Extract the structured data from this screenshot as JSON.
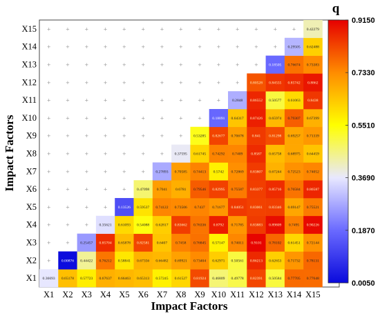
{
  "chart_data": {
    "type": "heatmap",
    "xlabel": "Impact Factors",
    "ylabel": "Impact Factors",
    "x_categories": [
      "X1",
      "X2",
      "X3",
      "X4",
      "X5",
      "X6",
      "X7",
      "X8",
      "X9",
      "X10",
      "X11",
      "X12",
      "X13",
      "X14",
      "X15"
    ],
    "y_categories": [
      "X1",
      "X2",
      "X3",
      "X4",
      "X5",
      "X6",
      "X7",
      "X8",
      "X9",
      "X10",
      "X11",
      "X12",
      "X13",
      "X14",
      "X15"
    ],
    "values": [
      [
        "0.36693",
        "0.65178",
        "0.57723",
        "0.67637",
        "0.66463",
        "0.65313",
        "0.57245",
        "0.61527",
        "0.81924",
        "0.46809",
        "0.49778",
        "0.82391",
        "0.50584",
        "0.77705",
        "0.77648"
      ],
      [
        null,
        "0.00876",
        "0.44422",
        "0.76212",
        "0.58841",
        "0.67356",
        "0.66482",
        "0.69921",
        "0.73404",
        "0.62971",
        "0.50561",
        "0.86213",
        "0.62653",
        "0.71732",
        "0.78131"
      ],
      [
        null,
        null,
        "0.25457",
        "0.85704",
        "0.65878",
        "0.82581",
        "0.6407",
        "0.7458",
        "0.76845",
        "0.57147",
        "0.74011",
        "0.9101",
        "0.78102",
        "0.61451",
        "0.72144"
      ],
      [
        null,
        null,
        null,
        "0.35621",
        "0.61093",
        "0.54088",
        "0.62817",
        "0.83662",
        "0.76336",
        "0.8792",
        "0.71785",
        "0.83883",
        "0.89809",
        "0.7495",
        "0.90226"
      ],
      [
        null,
        null,
        null,
        null,
        "0.13526",
        "0.59537",
        "0.74122",
        "0.73506",
        "0.7437",
        "0.71677",
        "0.84051",
        "0.83061",
        "0.83346",
        "0.69147",
        "0.75521"
      ],
      [
        null,
        null,
        null,
        null,
        null,
        "0.47098",
        "0.7041",
        "0.6781",
        "0.79546",
        "0.82995",
        "0.75587",
        "0.83377",
        "0.85716",
        "0.76584",
        "0.86587"
      ],
      [
        null,
        null,
        null,
        null,
        null,
        null,
        "0.27893",
        "0.70585",
        "0.74413",
        "0.5742",
        "0.72869",
        "0.83807",
        "0.67244",
        "0.72523",
        "0.74052"
      ],
      [
        null,
        null,
        null,
        null,
        null,
        null,
        null,
        "0.37595",
        "0.61745",
        "0.74292",
        "0.7409",
        "0.8587",
        "0.65758",
        "0.68975",
        "0.64459"
      ],
      [
        null,
        null,
        null,
        null,
        null,
        null,
        null,
        null,
        "0.53285",
        "0.82677",
        "0.70678",
        "0.841",
        "0.81298",
        "0.69257",
        "0.71339"
      ],
      [
        null,
        null,
        null,
        null,
        null,
        null,
        null,
        null,
        null,
        "0.18091",
        "0.64317",
        "0.87426",
        "0.65974",
        "0.79307",
        "0.67399"
      ],
      [
        null,
        null,
        null,
        null,
        null,
        null,
        null,
        null,
        null,
        null,
        "0.2848",
        "0.86552",
        "0.50577",
        "0.61063",
        "0.8438"
      ],
      [
        null,
        null,
        null,
        null,
        null,
        null,
        null,
        null,
        null,
        null,
        null,
        "0.80528",
        "0.84555",
        "0.85742",
        "0.8862"
      ],
      [
        null,
        null,
        null,
        null,
        null,
        null,
        null,
        null,
        null,
        null,
        null,
        null,
        "0.18505",
        "0.76674",
        "0.73383"
      ],
      [
        null,
        null,
        null,
        null,
        null,
        null,
        null,
        null,
        null,
        null,
        null,
        null,
        null,
        "0.29505",
        "0.62488"
      ],
      [
        null,
        null,
        null,
        null,
        null,
        null,
        null,
        null,
        null,
        null,
        null,
        null,
        null,
        null,
        "0.42279"
      ]
    ],
    "empty_marker": "+",
    "colorbar": {
      "title": "q",
      "min": 0.005,
      "max": 0.915,
      "ticks": [
        "0.0050",
        "0.1870",
        "0.3690",
        "0.5510",
        "0.7330",
        "0.9150"
      ],
      "colors": [
        "#0a0adc",
        "#6a6aff",
        "#e8e8ff",
        "#ffff00",
        "#ff8c00",
        "#e60000"
      ]
    },
    "grid": false
  }
}
